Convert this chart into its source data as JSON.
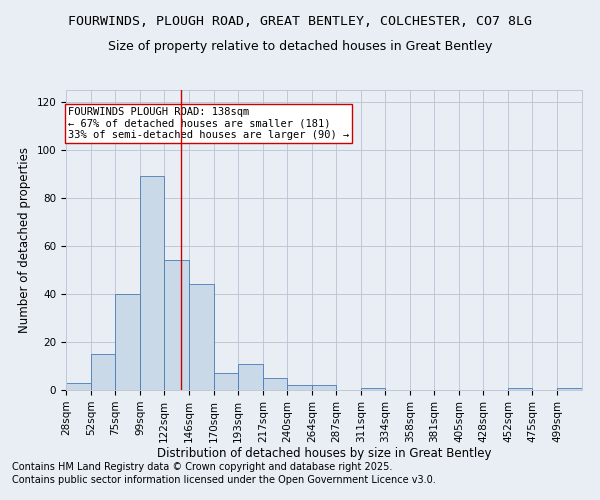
{
  "title1": "FOURWINDS, PLOUGH ROAD, GREAT BENTLEY, COLCHESTER, CO7 8LG",
  "title2": "Size of property relative to detached houses in Great Bentley",
  "xlabel": "Distribution of detached houses by size in Great Bentley",
  "ylabel": "Number of detached properties",
  "bin_labels": [
    "28sqm",
    "52sqm",
    "75sqm",
    "99sqm",
    "122sqm",
    "146sqm",
    "170sqm",
    "193sqm",
    "217sqm",
    "240sqm",
    "264sqm",
    "287sqm",
    "311sqm",
    "334sqm",
    "358sqm",
    "381sqm",
    "405sqm",
    "428sqm",
    "452sqm",
    "475sqm",
    "499sqm"
  ],
  "bin_edges": [
    28,
    52,
    75,
    99,
    122,
    146,
    170,
    193,
    217,
    240,
    264,
    287,
    311,
    334,
    358,
    381,
    405,
    428,
    452,
    475,
    499
  ],
  "bar_heights": [
    3,
    15,
    40,
    89,
    54,
    44,
    7,
    11,
    5,
    2,
    2,
    0,
    1,
    0,
    0,
    0,
    0,
    0,
    1,
    0,
    1
  ],
  "bar_color": "#c9d9e8",
  "bar_edge_color": "#4a7ab5",
  "grid_color": "#c0c8d8",
  "background_color": "#e8eef4",
  "vline_x": 138,
  "vline_color": "#cc0000",
  "annotation_text": "FOURWINDS PLOUGH ROAD: 138sqm\n← 67% of detached houses are smaller (181)\n33% of semi-detached houses are larger (90) →",
  "annotation_box_color": "#ffffff",
  "annotation_box_edge": "#cc0000",
  "footer1": "Contains HM Land Registry data © Crown copyright and database right 2025.",
  "footer2": "Contains public sector information licensed under the Open Government Licence v3.0.",
  "ylim": [
    0,
    125
  ],
  "yticks": [
    0,
    20,
    40,
    60,
    80,
    100,
    120
  ],
  "title_fontsize": 9.5,
  "subtitle_fontsize": 9,
  "axis_label_fontsize": 8.5,
  "tick_fontsize": 7.5,
  "annotation_fontsize": 7.5,
  "footer_fontsize": 7
}
